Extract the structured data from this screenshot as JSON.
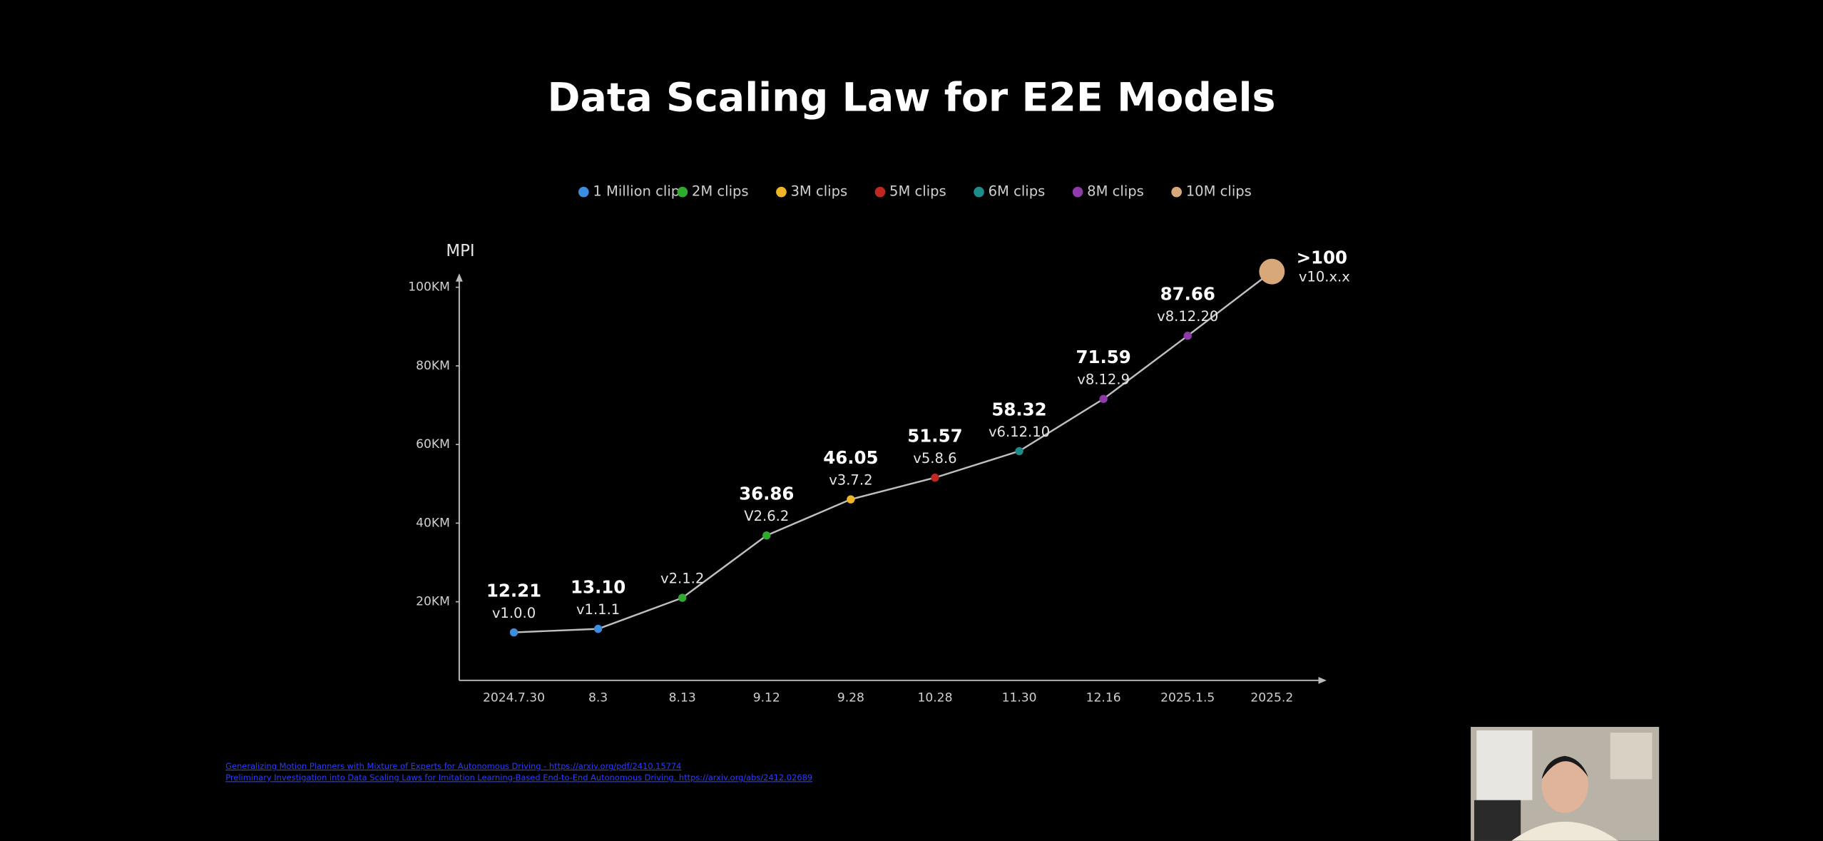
{
  "chart_data": {
    "type": "line",
    "title": "Data Scaling Law for E2E Models",
    "y_label": "MPI",
    "categories": [
      "2024.7.30",
      "8.3",
      "8.13",
      "9.12",
      "9.28",
      "10.28",
      "11.30",
      "12.16",
      "2025.1.5",
      "2025.2"
    ],
    "values": [
      12.21,
      13.1,
      21,
      36.86,
      46.05,
      51.57,
      58.32,
      71.59,
      87.66,
      104
    ],
    "value_labels": [
      "12.21",
      "13.10",
      null,
      "36.86",
      "46.05",
      "51.57",
      "58.32",
      "71.59",
      "87.66",
      ">100"
    ],
    "versions": [
      "v1.0.0",
      "v1.1.1",
      "v2.1.2",
      "V2.6.2",
      "v3.7.2",
      "v5.8.6",
      "v6.12.10",
      "v8.12.9",
      "v8.12.20",
      "v10.x.x"
    ],
    "point_colors": [
      "#3b8de0",
      "#3b8de0",
      "#2faa2f",
      "#2faa2f",
      "#f0b429",
      "#c0281f",
      "#1f8c8c",
      "#8e3aa8",
      "#8e3aa8",
      "#d9a87a"
    ],
    "line_color": "#bfbfbf",
    "legend": [
      {
        "name": "1 Million clips",
        "color": "#3b8de0"
      },
      {
        "name": "2M clips",
        "color": "#2faa2f"
      },
      {
        "name": "3M clips",
        "color": "#f0b429"
      },
      {
        "name": "5M clips",
        "color": "#c0281f"
      },
      {
        "name": "6M clips",
        "color": "#1f8c8c"
      },
      {
        "name": "8M clips",
        "color": "#8e3aa8"
      },
      {
        "name": "10M clips",
        "color": "#d9a87a"
      }
    ],
    "ylim": [
      0,
      105
    ],
    "yticks": [
      {
        "value": 20,
        "label": "20KM"
      },
      {
        "value": 40,
        "label": "40KM"
      },
      {
        "value": 60,
        "label": "60KM"
      },
      {
        "value": 80,
        "label": "80KM"
      },
      {
        "value": 100,
        "label": "100KM"
      }
    ],
    "grid": false
  },
  "references": [
    "Generalizing Motion Planners with Mixture of Experts for Autonomous Driving - https://arxiv.org/pdf/2410.15774",
    "Preliminary Investigation into Data Scaling Laws for Imitation Learning-Based End-to-End Autonomous Driving. https://arxiv.org/abs/2412.02689"
  ]
}
